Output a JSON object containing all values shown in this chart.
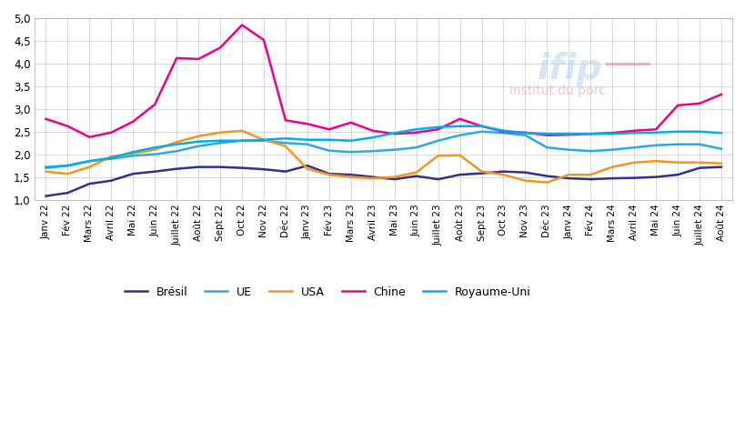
{
  "x_labels": [
    "Janv 22",
    "Fév 22",
    "Mars 22",
    "Avril 22",
    "Mai 22",
    "Juin 22",
    "Juillet 22",
    "Août 22",
    "Sept 22",
    "Oct 22",
    "Nov 22",
    "Déc 22",
    "Janv 23",
    "Fév 23",
    "Mars 23",
    "Avril 23",
    "Mai 23",
    "Juin 23",
    "Juillet 23",
    "Août 23",
    "Sept 23",
    "Oct 23",
    "Nov 23",
    "Déc 23",
    "Janv 24",
    "Fév 24",
    "Mars 24",
    "Avril 24",
    "Mai 24",
    "Juin 24",
    "Juillet 24",
    "Août 24"
  ],
  "bresil": [
    1.08,
    1.15,
    1.35,
    1.42,
    1.57,
    1.62,
    1.68,
    1.72,
    1.72,
    1.7,
    1.67,
    1.62,
    1.75,
    1.57,
    1.55,
    1.5,
    1.45,
    1.52,
    1.45,
    1.55,
    1.58,
    1.62,
    1.6,
    1.52,
    1.47,
    1.45,
    1.47,
    1.48,
    1.5,
    1.55,
    1.7,
    1.72
  ],
  "ue": [
    1.72,
    1.75,
    1.85,
    1.9,
    1.97,
    2.0,
    2.07,
    2.18,
    2.25,
    2.3,
    2.3,
    2.25,
    2.22,
    2.08,
    2.05,
    2.07,
    2.1,
    2.15,
    2.3,
    2.42,
    2.5,
    2.47,
    2.42,
    2.15,
    2.1,
    2.07,
    2.1,
    2.15,
    2.2,
    2.22,
    2.22,
    2.12
  ],
  "usa": [
    1.62,
    1.57,
    1.72,
    1.95,
    2.02,
    2.1,
    2.27,
    2.4,
    2.48,
    2.52,
    2.32,
    2.18,
    1.68,
    1.55,
    1.5,
    1.47,
    1.5,
    1.6,
    1.97,
    1.98,
    1.62,
    1.55,
    1.42,
    1.38,
    1.55,
    1.55,
    1.72,
    1.82,
    1.85,
    1.82,
    1.82,
    1.8
  ],
  "chine": [
    2.78,
    2.62,
    2.38,
    2.48,
    2.72,
    3.1,
    4.12,
    4.1,
    4.35,
    4.85,
    4.52,
    2.75,
    2.67,
    2.55,
    2.7,
    2.52,
    2.45,
    2.48,
    2.55,
    2.78,
    2.62,
    2.5,
    2.48,
    2.42,
    2.43,
    2.45,
    2.47,
    2.52,
    2.55,
    3.08,
    3.12,
    3.32
  ],
  "royaume_uni": [
    1.7,
    1.75,
    1.85,
    1.92,
    2.05,
    2.15,
    2.22,
    2.28,
    2.3,
    2.3,
    2.32,
    2.35,
    2.32,
    2.32,
    2.3,
    2.37,
    2.47,
    2.55,
    2.6,
    2.62,
    2.62,
    2.52,
    2.47,
    2.45,
    2.45,
    2.45,
    2.45,
    2.47,
    2.48,
    2.5,
    2.5,
    2.47
  ],
  "colors": {
    "bresil": "#2e3192",
    "ue": "#29abe2",
    "usa": "#f7941d",
    "chine": "#ec008c",
    "royaume_uni": "#00aeef"
  },
  "line_widths": {
    "bresil": 1.8,
    "ue": 1.8,
    "usa": 1.8,
    "chine": 1.8,
    "royaume_uni": 1.8
  },
  "ylim": [
    1.0,
    5.0
  ],
  "yticks": [
    1.0,
    1.5,
    2.0,
    2.5,
    3.0,
    3.5,
    4.0,
    4.5,
    5.0
  ],
  "legend_labels": [
    "Brésil",
    "UE",
    "USA",
    "Chine",
    "Royaume-Uni"
  ],
  "background_color": "#ffffff",
  "grid_color": "#cccccc"
}
